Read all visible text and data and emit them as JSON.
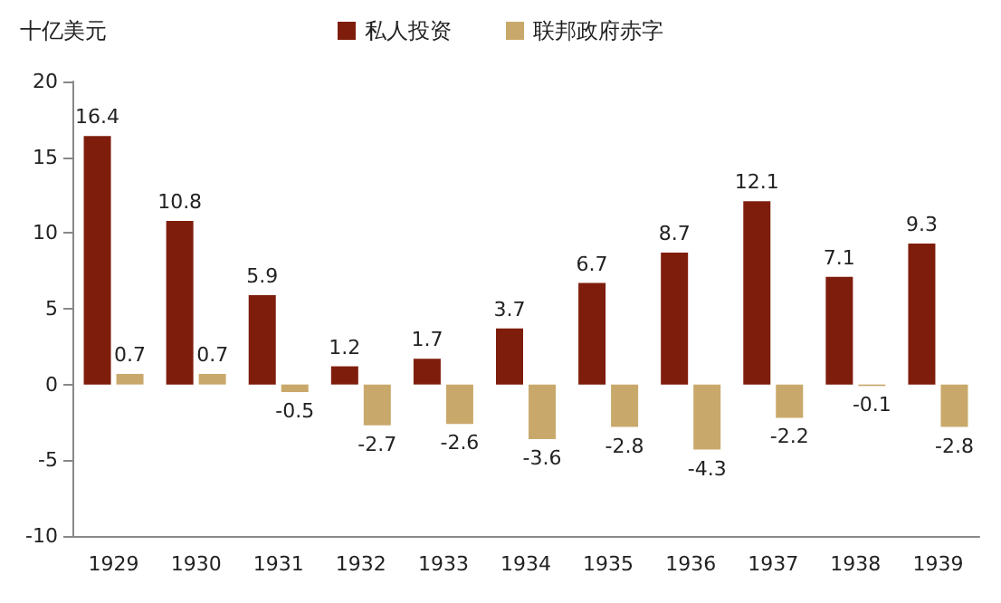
{
  "chart_data": {
    "type": "bar",
    "ylabel": "十亿美元",
    "categories": [
      "1929",
      "1930",
      "1931",
      "1932",
      "1933",
      "1934",
      "1935",
      "1936",
      "1937",
      "1938",
      "1939"
    ],
    "series": [
      {
        "name": "私人投资",
        "color": "#7f1d0c",
        "values": [
          16.4,
          10.8,
          5.9,
          1.2,
          1.7,
          3.7,
          6.7,
          8.7,
          12.1,
          7.1,
          9.3
        ]
      },
      {
        "name": "联邦政府赤字",
        "color": "#c9a96b",
        "values": [
          0.7,
          0.7,
          -0.5,
          -2.7,
          -2.6,
          -3.6,
          -2.8,
          -4.3,
          -2.2,
          -0.1,
          -2.8
        ]
      }
    ],
    "ylim": [
      -10,
      20
    ],
    "yticks": [
      -10,
      -5,
      0,
      5,
      10,
      15,
      20
    ],
    "data_labels": true,
    "legend": "top",
    "grid": false
  }
}
